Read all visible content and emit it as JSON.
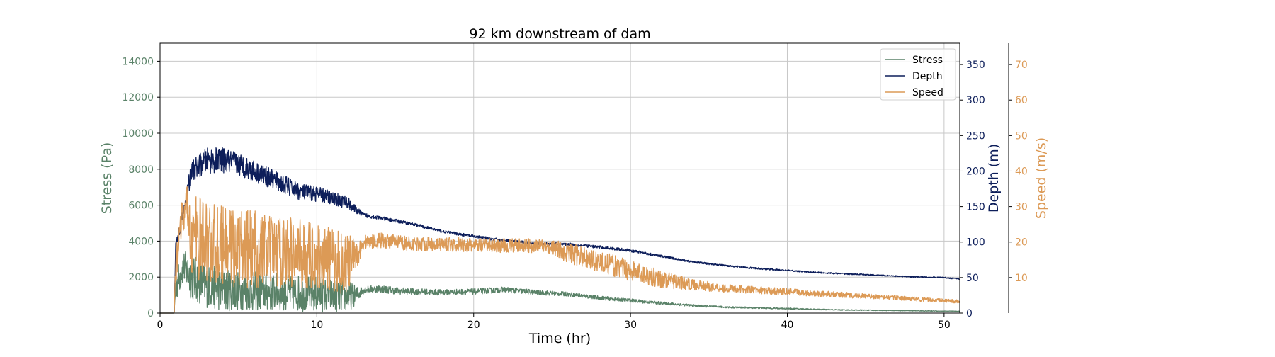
{
  "chart_data": {
    "type": "line",
    "title": "92 km downstream of dam",
    "xlabel": "Time (hr)",
    "xlim": [
      0,
      51
    ],
    "x_ticks": [
      0,
      10,
      20,
      30,
      40,
      50
    ],
    "grid": true,
    "legend_position": "top-right",
    "axes": {
      "left": {
        "label": "Stress (Pa)",
        "ylim": [
          0,
          15000
        ],
        "ticks": [
          0,
          2000,
          4000,
          6000,
          8000,
          10000,
          12000,
          14000
        ],
        "color": "#5a8268"
      },
      "right": {
        "label": "Depth (m)",
        "ylim": [
          0,
          380
        ],
        "ticks": [
          0,
          50,
          100,
          150,
          200,
          250,
          300,
          350
        ],
        "color": "#0d1e5a"
      },
      "right2": {
        "label": "Speed (m/s)",
        "ylim": [
          0,
          76
        ],
        "ticks": [
          10,
          20,
          30,
          40,
          50,
          60,
          70
        ],
        "color": "#dc9a56"
      }
    },
    "series": [
      {
        "name": "Stress",
        "axis": "left",
        "color": "#5a8268",
        "x": [
          0,
          0.9,
          1.0,
          1.5,
          2,
          3,
          4,
          5,
          6,
          7,
          8,
          9,
          10,
          11,
          12,
          12.5,
          13,
          14,
          15,
          16,
          18,
          20,
          22,
          24,
          26,
          28,
          30,
          32,
          34,
          36,
          38,
          40,
          42,
          44,
          46,
          48,
          50,
          51
        ],
        "y": [
          0,
          0,
          1500,
          2600,
          2000,
          1500,
          1300,
          1250,
          1200,
          1200,
          1150,
          1100,
          1050,
          1000,
          950,
          1000,
          1300,
          1350,
          1250,
          1200,
          1150,
          1200,
          1300,
          1150,
          1050,
          850,
          700,
          550,
          420,
          330,
          290,
          250,
          200,
          170,
          150,
          130,
          110,
          100
        ],
        "amplitude": [
          0,
          0,
          900,
          900,
          1300,
          1200,
          1200,
          1100,
          1100,
          1100,
          1000,
          1000,
          1000,
          950,
          900,
          500,
          200,
          220,
          200,
          180,
          160,
          160,
          160,
          140,
          120,
          110,
          100,
          80,
          60,
          50,
          40,
          40,
          30,
          25,
          20,
          18,
          15,
          15
        ]
      },
      {
        "name": "Depth",
        "axis": "right",
        "color": "#0d1e5a",
        "x": [
          0,
          0.9,
          1.0,
          1.3,
          1.7,
          2,
          3,
          4,
          5,
          6,
          7,
          8,
          9,
          10,
          11,
          12,
          12.5,
          13,
          14,
          15,
          16,
          18,
          20,
          22,
          24,
          26,
          28,
          30,
          32,
          34,
          36,
          38,
          40,
          42,
          44,
          46,
          48,
          50,
          51
        ],
        "y": [
          0,
          0,
          95,
          125,
          165,
          200,
          215,
          215,
          210,
          200,
          190,
          180,
          170,
          168,
          162,
          155,
          145,
          138,
          134,
          130,
          126,
          115,
          108,
          102,
          98,
          97,
          93,
          88,
          80,
          72,
          67,
          63,
          60,
          57,
          55,
          53,
          51,
          50,
          48
        ],
        "amplitude": [
          0,
          0,
          8,
          10,
          12,
          15,
          18,
          18,
          16,
          15,
          14,
          13,
          12,
          11,
          10,
          9,
          5,
          3,
          2.5,
          2.5,
          2,
          2,
          2,
          2,
          2,
          2,
          2,
          2,
          1.5,
          1.5,
          1.2,
          1.2,
          1,
          1,
          1,
          0.8,
          0.8,
          0.8,
          0.8
        ]
      },
      {
        "name": "Speed",
        "axis": "right2",
        "color": "#dc9a56",
        "x": [
          0,
          0.9,
          1.0,
          1.3,
          1.7,
          2,
          3,
          4,
          5,
          6,
          7,
          8,
          9,
          10,
          11,
          12,
          12.5,
          13,
          14,
          15,
          16,
          18,
          20,
          22,
          24,
          25,
          26,
          28,
          30,
          32,
          34,
          36,
          38,
          40,
          42,
          44,
          46,
          48,
          50,
          51
        ],
        "y": [
          0,
          0,
          12,
          25,
          30,
          22,
          20,
          19,
          18,
          18,
          17.5,
          17,
          16.5,
          16,
          15,
          14,
          16,
          20,
          20.5,
          20,
          19.5,
          19.5,
          19,
          19,
          19,
          18.5,
          17,
          14.5,
          12,
          9.5,
          8,
          7,
          6.5,
          6,
          5.5,
          5,
          4.5,
          4,
          3.5,
          3.2
        ],
        "amplitude": [
          0,
          0,
          6,
          5,
          6,
          12,
          12,
          11,
          11,
          11,
          10,
          10,
          10,
          9,
          9,
          9,
          4,
          2,
          2.2,
          2,
          2,
          2,
          2,
          2,
          2,
          2,
          3,
          3,
          3,
          2.5,
          1.5,
          1.2,
          1,
          1,
          0.8,
          0.8,
          0.6,
          0.6,
          0.5,
          0.5
        ]
      }
    ]
  }
}
